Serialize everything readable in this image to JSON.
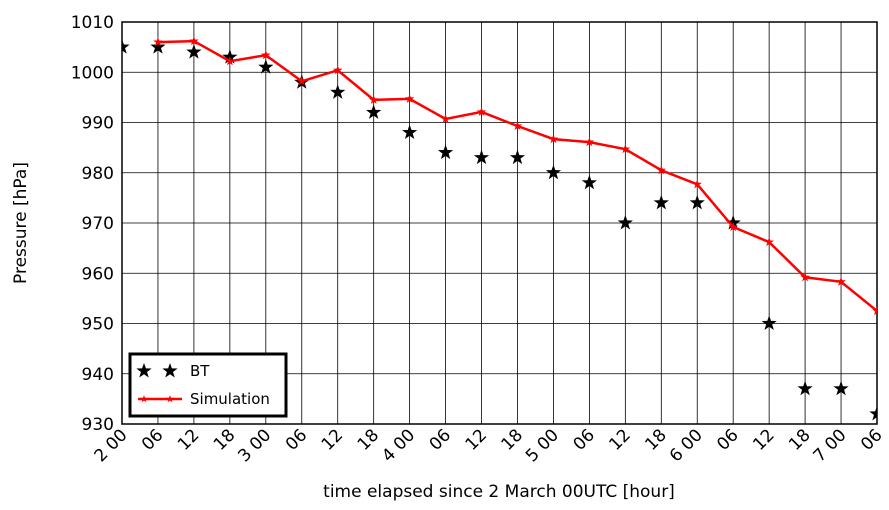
{
  "chart_data": {
    "type": "line",
    "x_label": "time elapsed since 2 March 00UTC [hour]",
    "y_label": "Pressure [hPa]",
    "xlim": [
      0,
      126
    ],
    "ylim": [
      930,
      1010
    ],
    "xticks": [
      {
        "value": 0,
        "label": "2 00"
      },
      {
        "value": 6,
        "label": "06"
      },
      {
        "value": 12,
        "label": "12"
      },
      {
        "value": 18,
        "label": "18"
      },
      {
        "value": 24,
        "label": "3 00"
      },
      {
        "value": 30,
        "label": "06"
      },
      {
        "value": 36,
        "label": "12"
      },
      {
        "value": 42,
        "label": "18"
      },
      {
        "value": 48,
        "label": "4 00"
      },
      {
        "value": 54,
        "label": "06"
      },
      {
        "value": 60,
        "label": "12"
      },
      {
        "value": 66,
        "label": "18"
      },
      {
        "value": 72,
        "label": "5 00"
      },
      {
        "value": 78,
        "label": "06"
      },
      {
        "value": 84,
        "label": "12"
      },
      {
        "value": 90,
        "label": "18"
      },
      {
        "value": 96,
        "label": "6 00"
      },
      {
        "value": 102,
        "label": "06"
      },
      {
        "value": 108,
        "label": "12"
      },
      {
        "value": 114,
        "label": "18"
      },
      {
        "value": 120,
        "label": "7 00"
      },
      {
        "value": 126,
        "label": "06"
      }
    ],
    "yticks": [
      930,
      940,
      950,
      960,
      970,
      980,
      990,
      1000,
      1010
    ],
    "grid": true,
    "legend": "lower left",
    "series": [
      {
        "name": "BT",
        "color": "#000000",
        "marker": "star",
        "line": false,
        "x": [
          0,
          6,
          12,
          18,
          24,
          30,
          36,
          42,
          48,
          54,
          60,
          66,
          72,
          78,
          84,
          90,
          96,
          102,
          108,
          114,
          120,
          126
        ],
        "values": [
          1005,
          1005,
          1004,
          1003,
          1001,
          998,
          996,
          992,
          988,
          984,
          983,
          983,
          980,
          978,
          970,
          974,
          974,
          970,
          950,
          937,
          937,
          932
        ]
      },
      {
        "name": "Simulation",
        "color": "#ff0000",
        "marker": "star",
        "line": true,
        "x": [
          6,
          12,
          18,
          24,
          30,
          36,
          42,
          48,
          54,
          60,
          66,
          72,
          78,
          84,
          90,
          96,
          102,
          108,
          114,
          120,
          126
        ],
        "values": [
          1006,
          1006.2,
          1002.2,
          1003.4,
          998.2,
          1000.4,
          994.5,
          994.7,
          990.7,
          992.1,
          989.3,
          986.7,
          986.1,
          984.7,
          980.5,
          977.7,
          969.2,
          966.2,
          959.2,
          958.3,
          952.5
        ]
      }
    ]
  }
}
